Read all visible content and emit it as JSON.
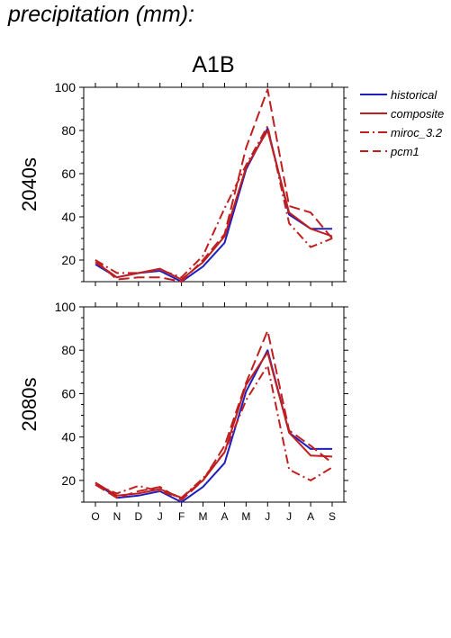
{
  "page_title": "precipitation (mm):",
  "scenario_title": "A1B",
  "legend": [
    {
      "name": "historical",
      "color": "#1f1fbf",
      "dash": "solid"
    },
    {
      "name": "composite",
      "color": "#bf1f1f",
      "dash": "solid"
    },
    {
      "name": "miroc_3.2",
      "color": "#bf1f1f",
      "dash": "dashdot"
    },
    {
      "name": "pcm1",
      "color": "#bf1f1f",
      "dash": "dashed"
    }
  ],
  "chart_data": [
    {
      "type": "line",
      "title": "A1B",
      "ylabel": "2040s",
      "xlabel": "",
      "categories": [
        "O",
        "N",
        "D",
        "J",
        "F",
        "M",
        "A",
        "M",
        "J",
        "J",
        "A",
        "S"
      ],
      "ylim": [
        10,
        100
      ],
      "yticks": [
        20,
        40,
        60,
        80,
        100
      ],
      "grid": false,
      "legend_position": "right",
      "series": [
        {
          "name": "historical",
          "values": [
            18,
            12,
            14,
            15,
            10,
            17,
            28,
            62,
            81,
            41,
            34.5,
            34.5
          ]
        },
        {
          "name": "composite",
          "values": [
            19,
            12,
            14,
            16,
            11,
            19,
            31,
            63,
            80,
            42,
            34.5,
            31
          ]
        },
        {
          "name": "miroc_3.2",
          "values": [
            20,
            14,
            14,
            15.5,
            12,
            22,
            44,
            64,
            82,
            37,
            26,
            30
          ]
        },
        {
          "name": "pcm1",
          "values": [
            20,
            11,
            12,
            12,
            10,
            20,
            32,
            72,
            99,
            45,
            42,
            30
          ]
        }
      ]
    },
    {
      "type": "line",
      "ylabel": "2080s",
      "xlabel": "",
      "categories": [
        "O",
        "N",
        "D",
        "J",
        "F",
        "M",
        "A",
        "M",
        "J",
        "J",
        "A",
        "S"
      ],
      "ylim": [
        10,
        100
      ],
      "yticks": [
        20,
        40,
        60,
        80,
        100
      ],
      "grid": false,
      "legend_position": "right",
      "series": [
        {
          "name": "historical",
          "values": [
            19,
            12,
            13,
            15,
            10,
            17,
            28,
            61,
            80,
            42,
            34.5,
            34.5
          ]
        },
        {
          "name": "composite",
          "values": [
            19,
            13,
            14,
            16,
            12,
            20,
            33,
            64,
            79,
            42,
            31.5,
            31
          ]
        },
        {
          "name": "miroc_3.2",
          "values": [
            18,
            14,
            17.5,
            15,
            12,
            21,
            33,
            57,
            73,
            25,
            20,
            26
          ]
        },
        {
          "name": "pcm1",
          "values": [
            18,
            12,
            15,
            17,
            11,
            20,
            36,
            65,
            89,
            43,
            36,
            28
          ]
        }
      ]
    }
  ]
}
